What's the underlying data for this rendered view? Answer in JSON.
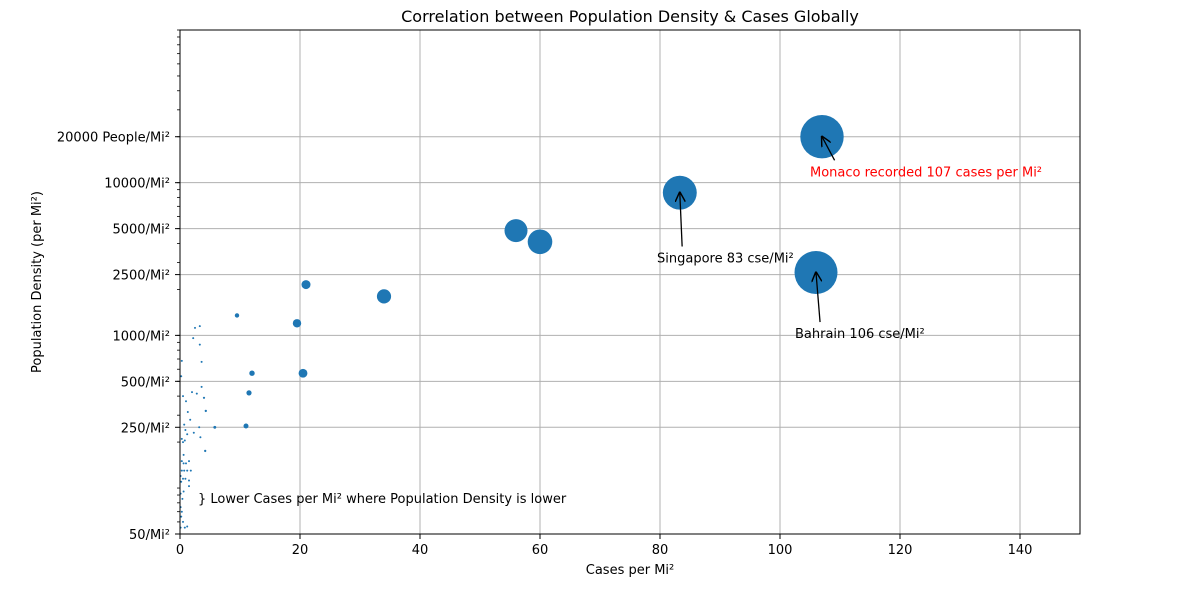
{
  "chart_data": {
    "type": "scatter",
    "title": "Correlation between Population Density & Cases Globally",
    "xlabel": "Cases per Mi²",
    "ylabel": "Population Density (per Mi²)",
    "xlim": [
      0,
      150
    ],
    "ylim": [
      50,
      100000
    ],
    "y_scale": "log",
    "grid": true,
    "marker_color": "#1f77b4",
    "x_ticks": [
      {
        "value": 0,
        "label": "0"
      },
      {
        "value": 20,
        "label": "20"
      },
      {
        "value": 40,
        "label": "40"
      },
      {
        "value": 60,
        "label": "60"
      },
      {
        "value": 80,
        "label": "80"
      },
      {
        "value": 100,
        "label": "100"
      },
      {
        "value": 120,
        "label": "120"
      },
      {
        "value": 140,
        "label": "140"
      }
    ],
    "y_ticks": [
      {
        "value": 50,
        "label": "50/Mi²"
      },
      {
        "value": 250,
        "label": "250/Mi²"
      },
      {
        "value": 500,
        "label": "500/Mi²"
      },
      {
        "value": 1000,
        "label": "1000/Mi²"
      },
      {
        "value": 2500,
        "label": "2500/Mi²"
      },
      {
        "value": 5000,
        "label": "5000/Mi²"
      },
      {
        "value": 10000,
        "label": "10000/Mi²"
      },
      {
        "value": 20000,
        "label": "20000 People/Mi²"
      }
    ],
    "points": [
      {
        "x": 107,
        "y": 20000
      },
      {
        "x": 83.3,
        "y": 8600
      },
      {
        "x": 106,
        "y": 2580
      },
      {
        "x": 56,
        "y": 4850
      },
      {
        "x": 60,
        "y": 4100
      },
      {
        "x": 34,
        "y": 1800
      },
      {
        "x": 21,
        "y": 2150
      },
      {
        "x": 19.5,
        "y": 1200
      },
      {
        "x": 20.5,
        "y": 565
      },
      {
        "x": 9.5,
        "y": 1350
      },
      {
        "x": 12,
        "y": 565
      },
      {
        "x": 11.5,
        "y": 420
      },
      {
        "x": 11,
        "y": 255
      },
      {
        "x": 3.3,
        "y": 1150
      },
      {
        "x": 2.5,
        "y": 1120
      },
      {
        "x": 2.2,
        "y": 960
      },
      {
        "x": 3.3,
        "y": 870
      },
      {
        "x": 3.6,
        "y": 670
      },
      {
        "x": 3.6,
        "y": 460
      },
      {
        "x": 2.0,
        "y": 425
      },
      {
        "x": 2.8,
        "y": 415
      },
      {
        "x": 4.0,
        "y": 390
      },
      {
        "x": 4.3,
        "y": 320
      },
      {
        "x": 1.3,
        "y": 315
      },
      {
        "x": 1.0,
        "y": 370
      },
      {
        "x": 0.5,
        "y": 400
      },
      {
        "x": 0.3,
        "y": 680
      },
      {
        "x": 0.2,
        "y": 540
      },
      {
        "x": 1.7,
        "y": 280
      },
      {
        "x": 0.7,
        "y": 260
      },
      {
        "x": 5.8,
        "y": 250
      },
      {
        "x": 3.2,
        "y": 250
      },
      {
        "x": 0.9,
        "y": 240
      },
      {
        "x": 2.3,
        "y": 230
      },
      {
        "x": 1.2,
        "y": 225
      },
      {
        "x": 3.4,
        "y": 215
      },
      {
        "x": 0.3,
        "y": 210
      },
      {
        "x": 0.8,
        "y": 205
      },
      {
        "x": 0.5,
        "y": 200
      },
      {
        "x": 4.2,
        "y": 175
      },
      {
        "x": 0.6,
        "y": 165
      },
      {
        "x": 0.3,
        "y": 150
      },
      {
        "x": 1.5,
        "y": 150
      },
      {
        "x": 0.6,
        "y": 145
      },
      {
        "x": 1.0,
        "y": 145
      },
      {
        "x": 0.3,
        "y": 130
      },
      {
        "x": 1.8,
        "y": 130
      },
      {
        "x": 0.7,
        "y": 130
      },
      {
        "x": 1.2,
        "y": 130
      },
      {
        "x": 0.1,
        "y": 120
      },
      {
        "x": 0.5,
        "y": 115
      },
      {
        "x": 0.9,
        "y": 115
      },
      {
        "x": 1.5,
        "y": 112
      },
      {
        "x": 0.2,
        "y": 110
      },
      {
        "x": 1.5,
        "y": 103
      },
      {
        "x": 0.6,
        "y": 95
      },
      {
        "x": 0.1,
        "y": 92
      },
      {
        "x": 0.4,
        "y": 85
      },
      {
        "x": 0.1,
        "y": 75
      },
      {
        "x": 0.3,
        "y": 70
      },
      {
        "x": 0.2,
        "y": 65
      },
      {
        "x": 0.5,
        "y": 60
      },
      {
        "x": 1.2,
        "y": 56
      },
      {
        "x": 0.8,
        "y": 55
      },
      {
        "x": 0.1,
        "y": 55
      }
    ],
    "annotations": [
      {
        "text": "Monaco recorded 107 cases per Mi²",
        "color": "#ff0000",
        "xy": [
          107,
          20000
        ],
        "xytext": [
          105,
          11000
        ],
        "anchor": "start"
      },
      {
        "text": "Singapore 83 cse/Mi²",
        "color": "#000000",
        "xy": [
          83.3,
          8600
        ],
        "xytext": [
          79.5,
          3000
        ],
        "anchor": "start"
      },
      {
        "text": "Bahrain 106 cse/Mi²",
        "color": "#000000",
        "xy": [
          106,
          2580
        ],
        "xytext": [
          102.5,
          960
        ],
        "anchor": "start"
      },
      {
        "text": "} Lower Cases per Mi² where Population Density is lower",
        "color": "#000000",
        "xytext": [
          3,
          80
        ],
        "anchor": "start"
      }
    ]
  }
}
